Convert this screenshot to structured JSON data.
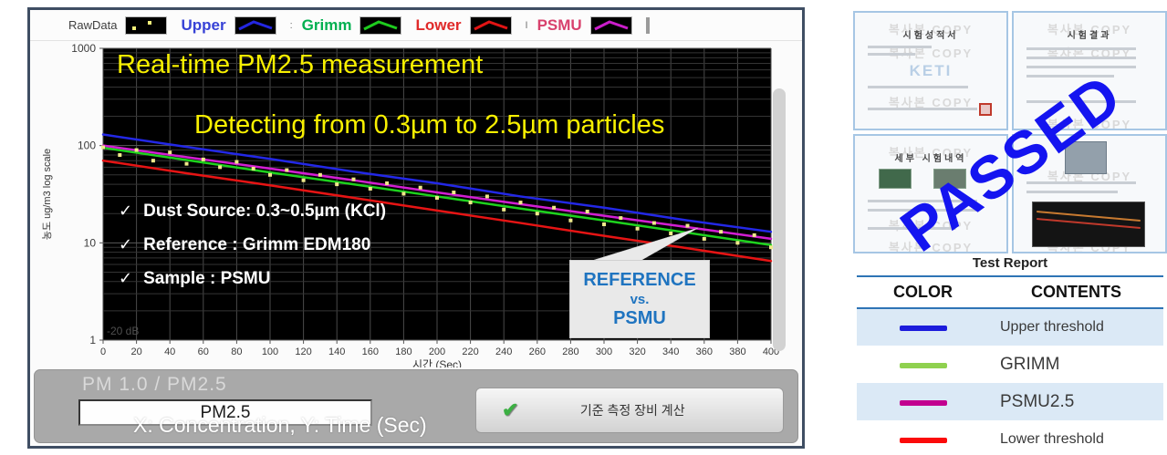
{
  "window": {
    "legend": {
      "items": [
        {
          "label": "RawData",
          "label_color": "#3f3f3f",
          "swatch_color": "#f5f07a",
          "type": "dots",
          "sep": ""
        },
        {
          "label": "Upper",
          "label_color": "#3742d6",
          "swatch_color": "#2326e0",
          "type": "line",
          "sep": ""
        },
        {
          "label": "Grimm",
          "label_color": "#00b050",
          "swatch_color": "#1ecb1e",
          "type": "line",
          "sep": ":"
        },
        {
          "label": "Lower",
          "label_color": "#e02a2a",
          "swatch_color": "#e01414",
          "type": "line",
          "sep": ""
        },
        {
          "label": "PSMU",
          "label_color": "#d8416d",
          "swatch_color": "#cb1ecb",
          "type": "line",
          "sep": "I"
        }
      ]
    },
    "annotations": {
      "checklist": [
        "Dust Source: 0.3~0.5µm (KCl)",
        "Reference : Grimm EDM180",
        "Sample : PSMU"
      ],
      "check_glyph": "✓",
      "callout": {
        "line1": "REFERENCE",
        "line2": "vs.",
        "line3": "PSMU",
        "text_color": "#1f74c0"
      }
    },
    "bottom": {
      "tab_label": "PM 1.0  /  PM2.5",
      "input_value": "PM2.5",
      "axis_note": "X: Concentration, Y: Time (Sec)",
      "button_label": "기준 측정 장비 계산",
      "button_check_glyph": "✔"
    }
  },
  "chart_data": {
    "type": "line",
    "title": "Real-time PM2.5 measurement",
    "subtitle": "Detecting from 0.3µm to 2.5µm particles",
    "xlabel": "시간 (Sec)",
    "ylabel": "농도 ug/m3  log scale",
    "xlim": [
      0,
      400
    ],
    "x_tick_step": 20,
    "ylim": [
      1,
      1000
    ],
    "y_scale": "log",
    "y_ticks": [
      1,
      10,
      100,
      1000
    ],
    "grid": true,
    "corner_note": "-20 dB",
    "legend_position": "top",
    "x": [
      0,
      50,
      100,
      150,
      200,
      250,
      300,
      350,
      400
    ],
    "series": [
      {
        "name": "Upper",
        "color": "#2328e6",
        "y": [
          130,
          97,
          73,
          54,
          41,
          30,
          23,
          17,
          13
        ]
      },
      {
        "name": "Lower",
        "color": "#e61414",
        "y": [
          70,
          52,
          39,
          29,
          21.5,
          16,
          11.8,
          8.8,
          6.5
        ]
      },
      {
        "name": "Grimm",
        "color": "#1ed21e",
        "y": [
          95,
          71,
          53,
          40,
          30,
          22.5,
          17,
          12.7,
          9.5
        ]
      },
      {
        "name": "PSMU",
        "color": "#d21ed2",
        "y": [
          100,
          76,
          58,
          44,
          33,
          25,
          19,
          14.5,
          11
        ]
      }
    ],
    "scatter": {
      "name": "RawData",
      "color": "#efe98a",
      "x": [
        0,
        10,
        20,
        30,
        40,
        50,
        60,
        70,
        80,
        90,
        100,
        110,
        120,
        130,
        140,
        150,
        160,
        170,
        180,
        190,
        200,
        210,
        220,
        230,
        240,
        250,
        260,
        270,
        280,
        290,
        300,
        310,
        320,
        330,
        340,
        350,
        360,
        370,
        380,
        390,
        400
      ],
      "y": [
        96,
        80,
        90,
        70,
        85,
        65,
        72,
        60,
        68,
        58,
        50,
        56,
        44,
        50,
        40,
        45,
        36,
        41,
        32,
        37,
        29,
        33,
        26,
        30,
        22,
        26,
        20,
        23,
        17,
        21,
        15.5,
        18,
        14,
        16,
        12.5,
        15,
        11,
        13,
        10,
        12,
        9
      ]
    }
  },
  "report": {
    "stamp": "PASSED",
    "stamp_color": "#1414f0",
    "title": "Test Report",
    "documents": [
      {
        "title": "시험성적서",
        "watermark": "복사본 COPY",
        "logo": "KETI"
      },
      {
        "title": "시험결과",
        "watermark": "복사본 COPY"
      },
      {
        "title": "세부 시험내역",
        "watermark": "복사본 COPY"
      },
      {
        "title": "",
        "watermark": "복사본 COPY"
      }
    ],
    "table": {
      "headers": [
        "COLOR",
        "CONTENTS"
      ],
      "rows": [
        {
          "color": "#1c1cdc",
          "label": "Upper threshold"
        },
        {
          "color": "#8fd14f",
          "label": "GRIMM"
        },
        {
          "color": "#c2008f",
          "label": "PSMU2.5"
        },
        {
          "color": "#fb0a0a",
          "label": "Lower threshold"
        }
      ]
    }
  }
}
